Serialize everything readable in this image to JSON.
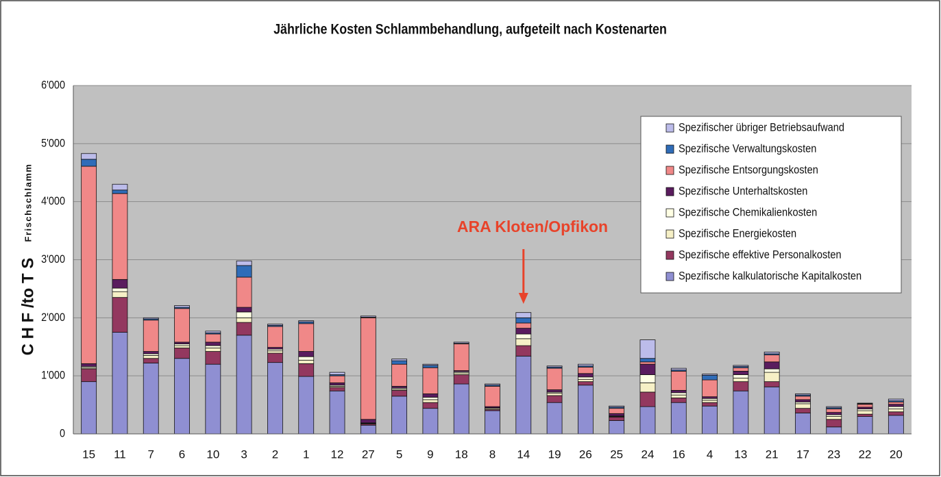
{
  "chart_data": {
    "type": "stacked_bar",
    "title": "Jährliche Kosten Schlammbehandlung, aufgeteilt nach Kostenarten",
    "y_label": "C H F /to T S",
    "y_label_small": "Frischschlamm",
    "annotation": "ARA Kloten/Opfikon",
    "annotation_category": "14",
    "categories": [
      "15",
      "11",
      "7",
      "6",
      "10",
      "3",
      "2",
      "1",
      "12",
      "27",
      "5",
      "9",
      "18",
      "8",
      "14",
      "19",
      "26",
      "25",
      "24",
      "16",
      "4",
      "13",
      "21",
      "17",
      "23",
      "22",
      "20"
    ],
    "series": [
      {
        "name": "Spezifische kalkulatorische Kapitalkosten",
        "color": "#8f8fd2",
        "values": [
          900,
          1750,
          1220,
          1300,
          1200,
          1700,
          1230,
          990,
          740,
          150,
          650,
          440,
          860,
          400,
          1340,
          540,
          840,
          230,
          470,
          540,
          480,
          740,
          810,
          360,
          120,
          300,
          320
        ]
      },
      {
        "name": "Spezifische effektive Personalkosten",
        "color": "#93385f",
        "values": [
          220,
          600,
          80,
          180,
          220,
          220,
          160,
          220,
          60,
          20,
          100,
          100,
          160,
          20,
          180,
          120,
          60,
          60,
          250,
          80,
          60,
          160,
          90,
          80,
          130,
          40,
          60
        ]
      },
      {
        "name": "Spezifische Energiekosten",
        "color": "#f6f0c6",
        "values": [
          20,
          100,
          50,
          40,
          60,
          80,
          40,
          60,
          20,
          10,
          20,
          50,
          30,
          20,
          120,
          40,
          40,
          10,
          160,
          50,
          40,
          60,
          160,
          80,
          50,
          60,
          50
        ]
      },
      {
        "name": "Spezifische Chemikalienkosten",
        "color": "#ffffe4",
        "values": [
          20,
          60,
          30,
          30,
          40,
          100,
          30,
          60,
          20,
          10,
          20,
          40,
          20,
          10,
          80,
          20,
          40,
          10,
          140,
          40,
          30,
          60,
          60,
          30,
          30,
          30,
          40
        ]
      },
      {
        "name": "Spezifische Unterhaltskosten",
        "color": "#5a1c5e",
        "values": [
          50,
          150,
          40,
          30,
          60,
          80,
          30,
          90,
          40,
          60,
          30,
          60,
          20,
          20,
          100,
          40,
          60,
          40,
          180,
          40,
          30,
          60,
          120,
          40,
          40,
          30,
          40
        ]
      },
      {
        "name": "Spezifische Entsorgungskosten",
        "color": "#f08888",
        "values": [
          3400,
          1480,
          540,
          580,
          140,
          520,
          360,
          480,
          120,
          1750,
          380,
          450,
          460,
          350,
          90,
          370,
          110,
          90,
          40,
          330,
          290,
          60,
          120,
          60,
          60,
          50,
          40
        ]
      },
      {
        "name": "Spezifische Verwaltungskosten",
        "color": "#2f6cb8",
        "values": [
          120,
          60,
          20,
          20,
          20,
          200,
          20,
          30,
          20,
          10,
          60,
          40,
          10,
          20,
          90,
          20,
          20,
          20,
          60,
          20,
          80,
          20,
          20,
          20,
          20,
          10,
          20
        ]
      },
      {
        "name": "Spezifischer übriger Betriebsaufwand",
        "color": "#bcbcea",
        "values": [
          100,
          100,
          20,
          30,
          30,
          80,
          20,
          20,
          40,
          20,
          30,
          20,
          20,
          20,
          90,
          20,
          30,
          20,
          320,
          30,
          20,
          20,
          30,
          20,
          20,
          10,
          30
        ]
      }
    ],
    "ylim": [
      0,
      6000
    ],
    "yticks": [
      0,
      {
        "value": 1000,
        "label": "1'000"
      },
      {
        "value": 2000,
        "label": "2'000"
      },
      {
        "value": 3000,
        "label": "3'000"
      },
      {
        "value": 4000,
        "label": "4'000"
      },
      {
        "value": 5000,
        "label": "5'000"
      },
      {
        "value": 6000,
        "label": "6'000"
      }
    ],
    "grid": true,
    "legend": "upper right"
  }
}
